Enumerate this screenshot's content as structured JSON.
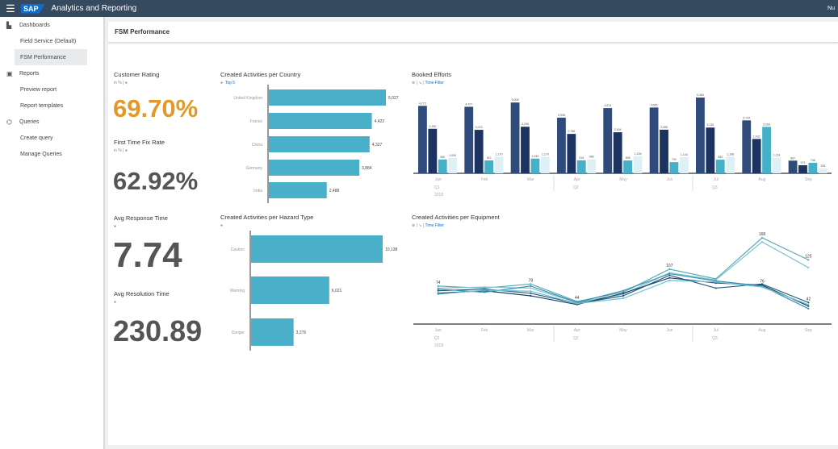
{
  "app": {
    "title": "Analytics and Reporting",
    "logo": "SAP",
    "user": "Nu"
  },
  "sidebar": [
    {
      "type": "group",
      "label": "Dashboards",
      "icon": "dashboard-icon"
    },
    {
      "type": "item",
      "label": "Field Service (Default)"
    },
    {
      "type": "item",
      "label": "FSM Performance",
      "selected": true
    },
    {
      "type": "group",
      "label": "Reports",
      "icon": "report-icon"
    },
    {
      "type": "item",
      "label": "Preview report"
    },
    {
      "type": "item",
      "label": "Report templates"
    },
    {
      "type": "group",
      "label": "Queries",
      "icon": "query-icon"
    },
    {
      "type": "item",
      "label": "Create query"
    },
    {
      "type": "item",
      "label": "Manage Queries"
    }
  ],
  "page": {
    "title": "FSM Performance"
  },
  "kpis": {
    "customer_rating": {
      "title": "Customer Rating",
      "sub": "in %",
      "value": "69.70%",
      "color": "#e09a2c"
    },
    "first_time_fix": {
      "title": "First Time Fix Rate",
      "sub": "in %",
      "value": "62.92%"
    },
    "avg_response": {
      "title": "Avg Response Time",
      "value": "7.74"
    },
    "avg_resolution": {
      "title": "Avg Resolution Time",
      "value": "230.89"
    }
  },
  "chart_data": [
    {
      "id": "country",
      "type": "bar",
      "orientation": "horizontal",
      "title": "Created Activities per Country",
      "filter": "Top 5",
      "categories": [
        "United Kingdom",
        "France",
        "China",
        "Germany",
        "India"
      ],
      "values": [
        5027,
        4422,
        4327,
        3884,
        2488
      ],
      "color": "#4aafc8"
    },
    {
      "id": "hazard",
      "type": "bar",
      "orientation": "horizontal",
      "title": "Created Activities per Hazard Type",
      "categories": [
        "Caution",
        "Warning",
        "Danger"
      ],
      "values": [
        10138,
        6021,
        3276
      ],
      "color": "#4aafc8"
    },
    {
      "id": "booked",
      "type": "bar",
      "title": "Booked Efforts",
      "filter": "Time Filter",
      "categories": [
        "Jan",
        "Feb",
        "Mar",
        "Apr",
        "May",
        "Jun",
        "Jul",
        "Aug",
        "Sep"
      ],
      "quarters": [
        "Q1",
        "Q2",
        "Q3"
      ],
      "year": "2018",
      "colors": [
        "#2f4b7c",
        "#1d3461",
        "#45b0c8",
        "#dcf0f6"
      ],
      "series": [
        {
          "values": [
            4772,
            4707,
            5008,
            3938,
            4613,
            4655,
            5360,
            3744,
            897
          ]
        },
        {
          "values": [
            3150,
            3074,
            3295,
            2786,
            2904,
            3085,
            3236,
            2432,
            573
          ]
        },
        {
          "values": [
            980,
            912,
            1040,
            919,
            908,
            792,
            964,
            3283,
            746
          ]
        },
        {
          "values": [
            1090,
            1170,
            1170,
            986,
            1206,
            1144,
            1168,
            1118,
            335
          ]
        }
      ]
    },
    {
      "id": "equipment",
      "type": "line",
      "title": "Created Activities per Equipment",
      "filter": "Time Filter",
      "categories": [
        "Jan",
        "Feb",
        "Mar",
        "Apr",
        "May",
        "Jun",
        "Jul",
        "Aug",
        "Sep"
      ],
      "quarters": [
        "Q1",
        "Q2",
        "Q3"
      ],
      "year": "2018",
      "colors": [
        "#5aa9b8",
        "#7fc3cf",
        "#2a5c7a",
        "#1f3f63",
        "#3a8fb0",
        "#69c1da"
      ],
      "series": [
        {
          "values": [
            74,
            70,
            78,
            44,
            62,
            107,
            88,
            168,
            125
          ]
        },
        {
          "values": [
            70,
            72,
            70,
            42,
            58,
            100,
            86,
            160,
            110
          ]
        },
        {
          "values": [
            65,
            68,
            60,
            40,
            55,
            95,
            70,
            78,
            42
          ]
        },
        {
          "values": [
            60,
            65,
            55,
            38,
            60,
            90,
            80,
            76,
            35
          ]
        },
        {
          "values": [
            68,
            62,
            74,
            42,
            65,
            98,
            84,
            74,
            30
          ]
        },
        {
          "values": [
            58,
            66,
            64,
            40,
            50,
            85,
            82,
            72,
            38
          ]
        }
      ],
      "labels": [
        {
          "m": 0,
          "v": 74
        },
        {
          "m": 2,
          "v": 78
        },
        {
          "m": 3,
          "v": 44
        },
        {
          "m": 5,
          "v": 107
        },
        {
          "m": 7,
          "v": 168
        },
        {
          "m": 8,
          "v": 125
        },
        {
          "m": 7,
          "v": 76
        },
        {
          "m": 8,
          "v": 42
        }
      ]
    }
  ]
}
